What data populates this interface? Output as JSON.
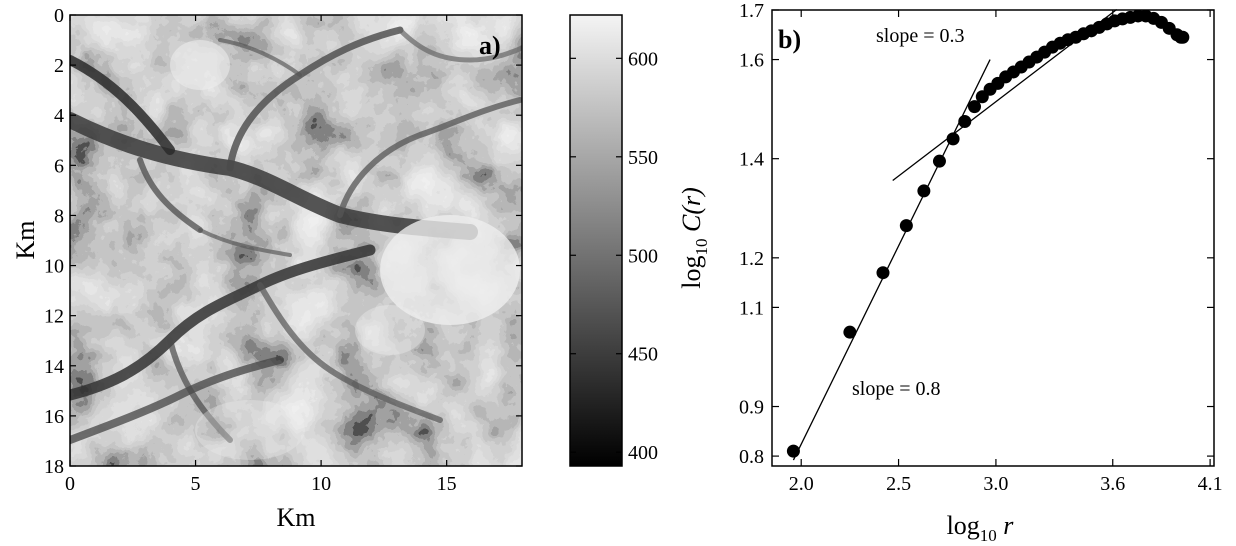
{
  "figure": {
    "panel_a": {
      "label": "a)",
      "xlabel": "Km",
      "ylabel": "Km",
      "xticks": [
        "0",
        "5",
        "10",
        "15"
      ],
      "yticks": [
        "0",
        "2",
        "4",
        "6",
        "8",
        "10",
        "12",
        "14",
        "16",
        "18"
      ],
      "colorbar_ticks": [
        "400",
        "450",
        "500",
        "550",
        "600"
      ]
    },
    "panel_b": {
      "label": "b)",
      "annotations": [
        "slope = 0.3",
        "slope = 0.8"
      ],
      "xticks": [
        "2.0",
        "2.5",
        "3.0",
        "3.6",
        "4.1"
      ],
      "yticks": [
        "0.8",
        "0.9",
        "1.1",
        "1.2",
        "1.4",
        "1.6",
        "1.7"
      ]
    }
  },
  "chart_data": [
    {
      "type": "heatmap",
      "title": "a)",
      "xlabel": "Km",
      "ylabel": "Km",
      "xlim": [
        0,
        18
      ],
      "ylim": [
        18,
        0
      ],
      "colorbar": {
        "min": 393,
        "max": 622,
        "ticks": [
          400,
          450,
          500,
          550,
          600
        ],
        "colormap": "gray"
      }
    },
    {
      "type": "scatter",
      "title": "b)",
      "xlabel": "log10 r",
      "ylabel": "log10 C(r)",
      "xlim": [
        1.85,
        4.12
      ],
      "ylim": [
        0.78,
        1.7
      ],
      "x": [
        1.96,
        2.25,
        2.42,
        2.54,
        2.63,
        2.71,
        2.78,
        2.84,
        2.89,
        2.93,
        2.97,
        3.01,
        3.05,
        3.09,
        3.13,
        3.17,
        3.21,
        3.25,
        3.29,
        3.33,
        3.37,
        3.41,
        3.45,
        3.49,
        3.53,
        3.57,
        3.61,
        3.65,
        3.69,
        3.73,
        3.77,
        3.81,
        3.85,
        3.89,
        3.93,
        3.95,
        3.96
      ],
      "y": [
        0.81,
        1.05,
        1.17,
        1.265,
        1.335,
        1.395,
        1.44,
        1.475,
        1.505,
        1.525,
        1.54,
        1.552,
        1.565,
        1.575,
        1.585,
        1.595,
        1.605,
        1.615,
        1.625,
        1.633,
        1.64,
        1.645,
        1.652,
        1.658,
        1.665,
        1.672,
        1.678,
        1.682,
        1.685,
        1.688,
        1.688,
        1.683,
        1.675,
        1.663,
        1.65,
        1.645,
        1.645
      ],
      "fit_lines": [
        {
          "label": "slope = 0.3",
          "slope": 0.3,
          "x": [
            2.47,
            3.62
          ],
          "y": [
            1.356,
            1.701
          ]
        },
        {
          "label": "slope = 0.8",
          "slope": 0.8,
          "x": [
            1.96,
            2.97
          ],
          "y": [
            0.792,
            1.6
          ]
        }
      ]
    }
  ]
}
